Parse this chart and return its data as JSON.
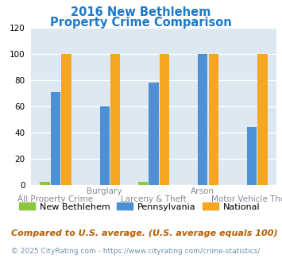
{
  "title_line1": "2016 New Bethlehem",
  "title_line2": "Property Crime Comparison",
  "title_color": "#2079c7",
  "x_labels_top": [
    "",
    "Burglary",
    "",
    "Arson",
    ""
  ],
  "x_labels_bottom": [
    "All Property Crime",
    "",
    "Larceny & Theft",
    "",
    "Motor Vehicle Theft"
  ],
  "new_bethlehem": [
    2,
    0,
    2,
    0,
    0
  ],
  "pennsylvania": [
    71,
    60,
    78,
    100,
    44
  ],
  "national": [
    100,
    100,
    100,
    100,
    100
  ],
  "nb_color": "#8dc63f",
  "pa_color": "#4d90d4",
  "nat_color": "#f5a623",
  "ylim": [
    0,
    120
  ],
  "yticks": [
    0,
    20,
    40,
    60,
    80,
    100,
    120
  ],
  "bg_color": "#dde8f0",
  "grid_color": "#ffffff",
  "legend_labels": [
    "New Bethlehem",
    "Pennsylvania",
    "National"
  ],
  "footnote1": "Compared to U.S. average. (U.S. average equals 100)",
  "footnote2": "© 2025 CityRating.com - https://www.cityrating.com/crime-statistics/",
  "footnote1_color": "#b85c00",
  "footnote1_size": 8.0,
  "footnote2_color": "#7090b0",
  "footnote2_size": 6.5
}
